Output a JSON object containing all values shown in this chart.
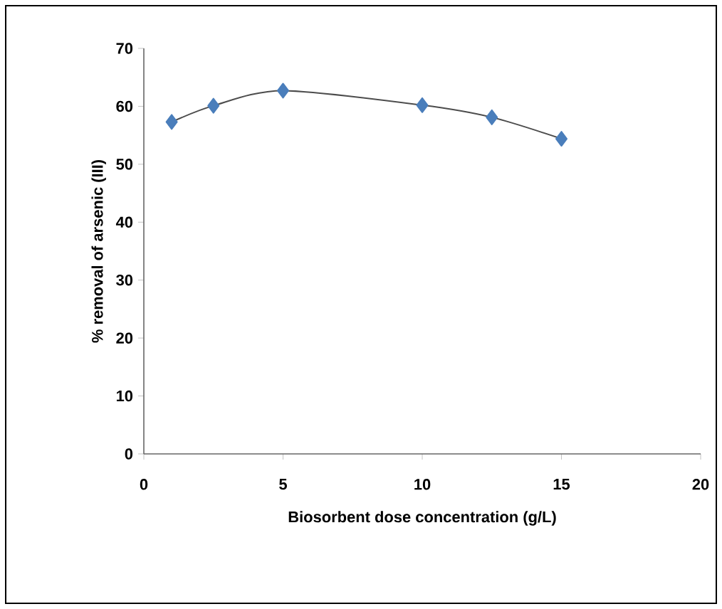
{
  "chart_data": {
    "type": "line",
    "xlabel": "Biosorbent dose concentration (g/L)",
    "ylabel": "% removal of arsenic (III)",
    "x": [
      1,
      2.5,
      5,
      10,
      12.5,
      15
    ],
    "series": [
      {
        "color": "#4a7ebb",
        "values": [
          57.3,
          60.1,
          62.7,
          60.2,
          58.1,
          54.4
        ]
      }
    ],
    "xlim": [
      0,
      20
    ],
    "xticks": [
      0,
      5,
      10,
      15,
      20
    ],
    "ylim": [
      0,
      70
    ],
    "yticks": [
      0,
      10,
      20,
      30,
      40,
      50,
      60,
      70
    ],
    "grid": false,
    "marker": "diamond",
    "line_style": "solid"
  }
}
